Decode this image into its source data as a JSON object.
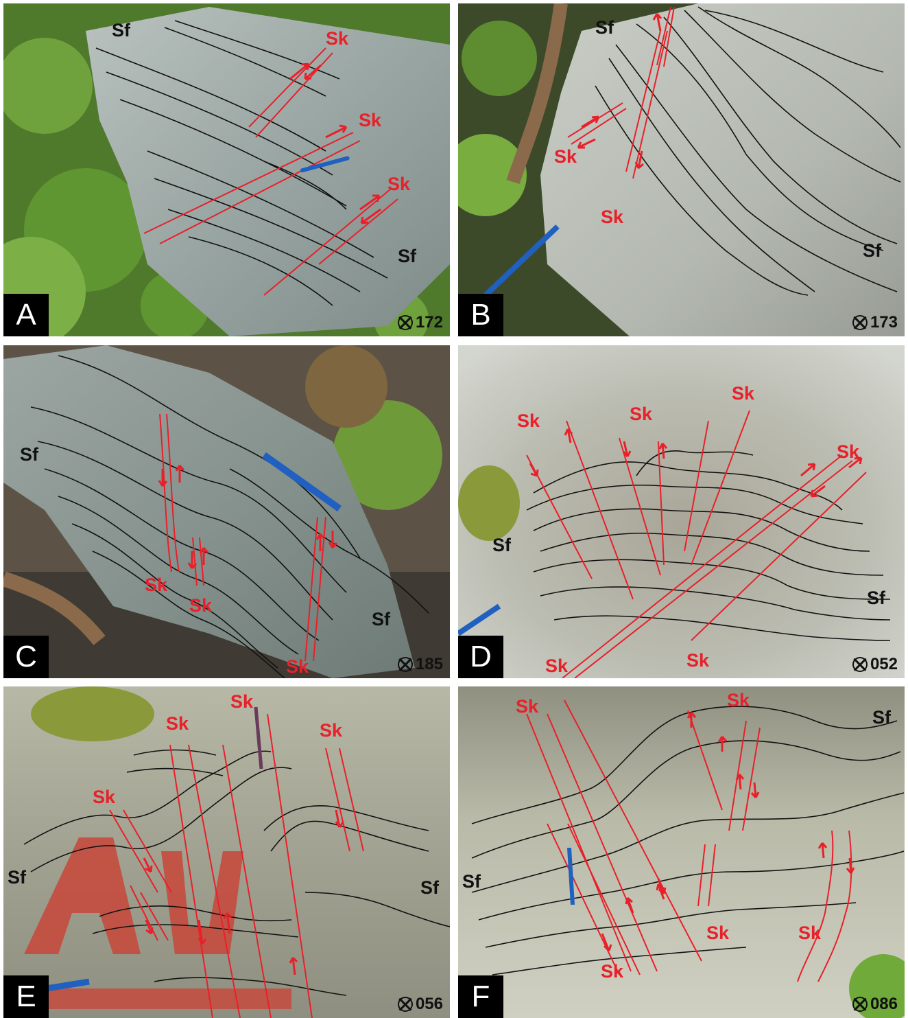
{
  "panels": [
    {
      "label": "A",
      "view": "172",
      "sk": [
        "Sk",
        "Sk",
        "Sk"
      ],
      "sf": [
        "Sf",
        "Sf"
      ]
    },
    {
      "label": "B",
      "view": "173",
      "sk": [
        "Sk",
        "Sk"
      ],
      "sf": [
        "Sf",
        "Sf"
      ]
    },
    {
      "label": "C",
      "view": "185",
      "sk": [
        "Sk",
        "Sk",
        "Sk"
      ],
      "sf": [
        "Sf",
        "Sf"
      ]
    },
    {
      "label": "D",
      "view": "052",
      "sk": [
        "Sk",
        "Sk",
        "Sk",
        "Sk",
        "Sk",
        "Sk"
      ],
      "sf": [
        "Sf",
        "Sf"
      ]
    },
    {
      "label": "E",
      "view": "056",
      "sk": [
        "Sk",
        "Sk",
        "Sk",
        "Sk"
      ],
      "sf": [
        "Sf",
        "Sf"
      ]
    },
    {
      "label": "F",
      "view": "086",
      "sk": [
        "Sk",
        "Sk",
        "Sk",
        "Sk",
        "Sk"
      ],
      "sf": [
        "Sf",
        "Sf"
      ]
    }
  ],
  "colors": {
    "shear": "#e8202a",
    "foliation": "#111111"
  }
}
